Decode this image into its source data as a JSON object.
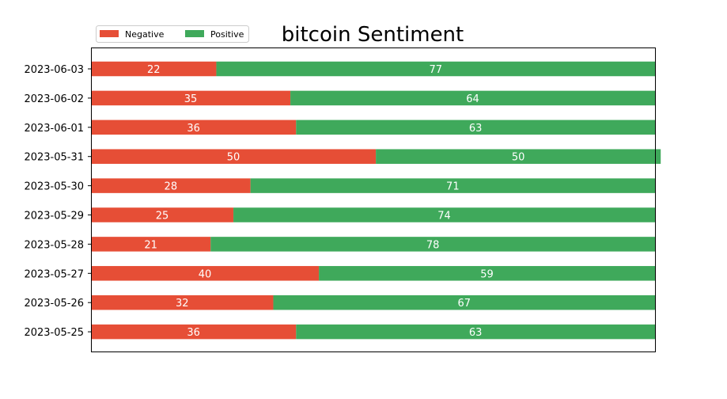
{
  "chart_data": {
    "type": "bar",
    "orientation": "horizontal",
    "stacked": true,
    "title": "bitcoin Sentiment",
    "xlabel": "",
    "ylabel": "",
    "categories": [
      "2023-06-03",
      "2023-06-02",
      "2023-06-01",
      "2023-05-31",
      "2023-05-30",
      "2023-05-29",
      "2023-05-28",
      "2023-05-27",
      "2023-05-26",
      "2023-05-25"
    ],
    "series": [
      {
        "name": "Negative",
        "color": "#e64e36",
        "values": [
          22,
          35,
          36,
          50,
          28,
          25,
          21,
          40,
          32,
          36
        ]
      },
      {
        "name": "Positive",
        "color": "#3fa95b",
        "values": [
          77,
          64,
          63,
          50,
          71,
          74,
          78,
          59,
          67,
          63
        ]
      }
    ],
    "xlim": [
      0,
      99
    ],
    "x_ticks_visible": false,
    "grid": false,
    "legend_position": "top-left",
    "legend_columns": 2,
    "value_labels": true
  }
}
